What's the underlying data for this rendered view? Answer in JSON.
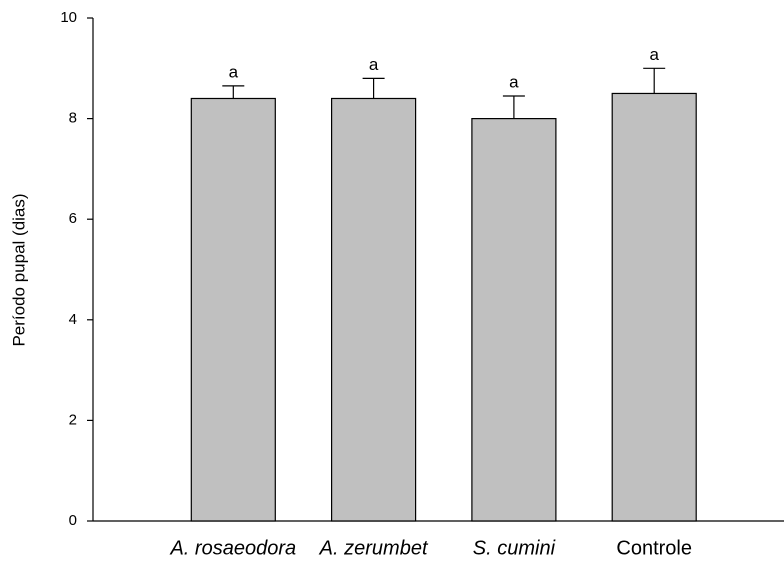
{
  "chart_data": {
    "type": "bar",
    "y_label": "Período pupal (dias)",
    "categories": [
      "A. rosaeodora",
      "A. zerumbet",
      "S. cumini",
      "Controle"
    ],
    "category_style": [
      "italic",
      "italic",
      "italic",
      "normal"
    ],
    "values": [
      8.4,
      8.4,
      8.0,
      8.5
    ],
    "errors": [
      0.25,
      0.4,
      0.45,
      0.5
    ],
    "annotations": [
      "a",
      "a",
      "a",
      "a"
    ],
    "color": "#c0c0c0",
    "ylim": [
      0,
      10
    ],
    "yticks": [
      0,
      2,
      4,
      6,
      8,
      10
    ]
  }
}
